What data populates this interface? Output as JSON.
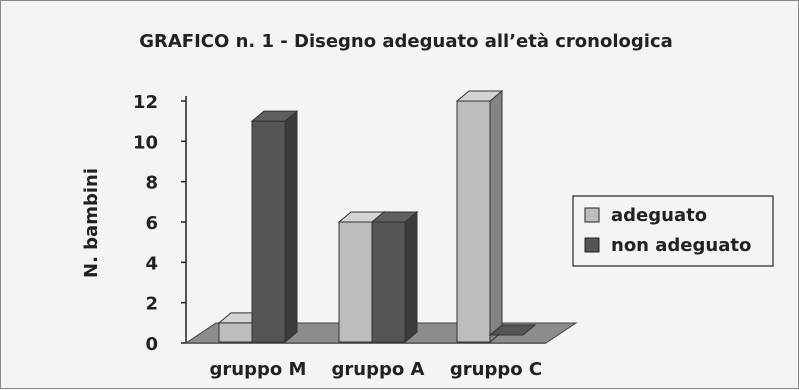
{
  "chart_data": {
    "type": "bar",
    "title": "GRAFICO n. 1 - Disegno adeguato all’età cronologica",
    "ylabel": "N. bambini",
    "xlabel": "",
    "categories": [
      "gruppo M",
      "gruppo A",
      "gruppo C"
    ],
    "series": [
      {
        "name": "adeguato",
        "values": [
          1,
          6,
          12
        ],
        "color": "#bdbdbd"
      },
      {
        "name": "non adeguato",
        "values": [
          11,
          6,
          0
        ],
        "color": "#555555"
      }
    ],
    "ylim": [
      0,
      12
    ],
    "yticks": [
      0,
      2,
      4,
      6,
      8,
      10,
      12
    ],
    "legend_position": "right",
    "grid": false
  }
}
